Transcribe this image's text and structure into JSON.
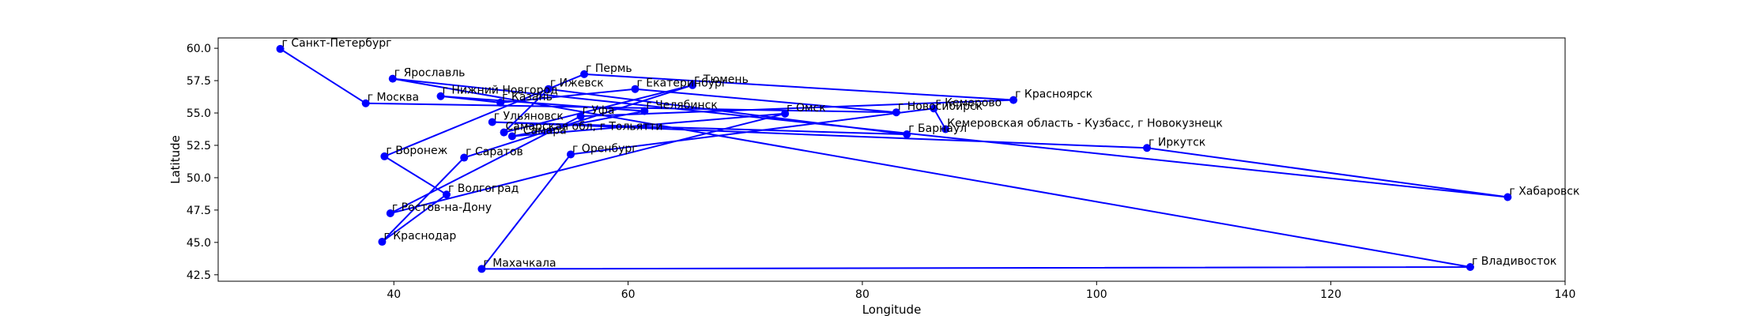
{
  "chart_data": {
    "type": "line",
    "title": "",
    "xlabel": "Longitude",
    "ylabel": "Latitude",
    "xlim": [
      25,
      140
    ],
    "ylim": [
      42,
      60.8
    ],
    "xticks": [
      40,
      60,
      80,
      100,
      120,
      140
    ],
    "yticks": [
      42.5,
      45.0,
      47.5,
      50.0,
      52.5,
      55.0,
      57.5,
      60.0
    ],
    "grid": false,
    "legend": "none",
    "series": [
      {
        "color": "#0000ff",
        "points": [
          {
            "label": "г Санкт-Петербург",
            "x": 30.3,
            "y": 59.95
          },
          {
            "label": "г Москва",
            "x": 37.6,
            "y": 55.75
          },
          {
            "label": "г Новосибирск",
            "x": 82.9,
            "y": 55.05
          },
          {
            "label": "г Екатеринбург",
            "x": 60.6,
            "y": 56.85
          },
          {
            "label": "г Казань",
            "x": 49.1,
            "y": 55.8
          },
          {
            "label": "г Нижний Новгород",
            "x": 44.0,
            "y": 56.3
          },
          {
            "label": "г Челябинск",
            "x": 61.4,
            "y": 55.15
          },
          {
            "label": "г Самара",
            "x": 50.1,
            "y": 53.2
          },
          {
            "label": "г Омск",
            "x": 73.4,
            "y": 54.95
          },
          {
            "label": "г Ростов-на-Дону",
            "x": 39.7,
            "y": 47.25
          },
          {
            "label": "г Уфа",
            "x": 55.95,
            "y": 54.75
          },
          {
            "label": "г Красноярск",
            "x": 92.9,
            "y": 56.0
          },
          {
            "label": "г Пермь",
            "x": 56.25,
            "y": 58.0
          },
          {
            "label": "г Воронеж",
            "x": 39.2,
            "y": 51.65
          },
          {
            "label": "г Волгоград",
            "x": 44.5,
            "y": 48.7
          },
          {
            "label": "г Краснодар",
            "x": 39.0,
            "y": 45.05
          },
          {
            "label": "г Саратов",
            "x": 46.0,
            "y": 51.55
          },
          {
            "label": "г Тюмень",
            "x": 65.5,
            "y": 57.15
          },
          {
            "label": "Самарская обл, г Тольятти",
            "x": 49.4,
            "y": 53.5
          },
          {
            "label": "г Ижевск",
            "x": 53.2,
            "y": 56.85
          },
          {
            "label": "г Барнаул",
            "x": 83.8,
            "y": 53.35
          },
          {
            "label": "г Ульяновск",
            "x": 48.4,
            "y": 54.3
          },
          {
            "label": "г Иркутск",
            "x": 104.3,
            "y": 52.3
          },
          {
            "label": "г Хабаровск",
            "x": 135.1,
            "y": 48.5
          },
          {
            "label": "г Ярославль",
            "x": 39.9,
            "y": 57.65
          },
          {
            "label": "г Владивосток",
            "x": 131.9,
            "y": 43.1
          },
          {
            "label": "г Махачкала",
            "x": 47.5,
            "y": 42.95
          },
          {
            "label": "г Оренбург",
            "x": 55.1,
            "y": 51.8
          },
          {
            "label": "г Кемерово",
            "x": 86.1,
            "y": 55.35
          },
          {
            "label": "Кемеровская область - Кузбасс, г Новокузнецк",
            "x": 87.1,
            "y": 53.75
          }
        ]
      }
    ]
  }
}
